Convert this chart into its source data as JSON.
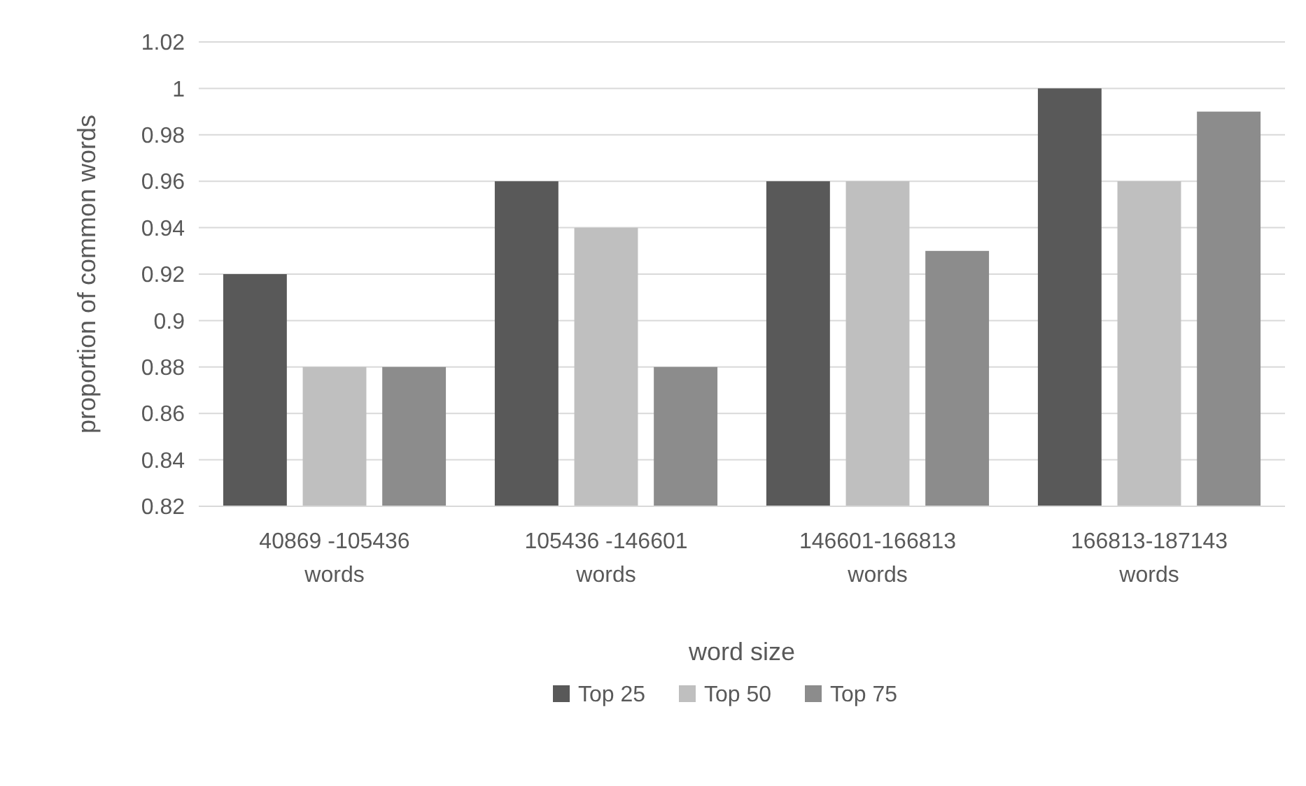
{
  "chart_data": {
    "type": "bar",
    "xlabel": "word size",
    "ylabel": "proportion of common words",
    "categories": [
      "40869 -105436 words",
      "105436 -146601 words",
      "146601-166813 words",
      "166813-187143 words"
    ],
    "series": [
      {
        "name": "Top 25",
        "color": "#595959",
        "values": [
          0.92,
          0.96,
          0.96,
          1
        ]
      },
      {
        "name": "Top 50",
        "color": "#bfbfbf",
        "values": [
          0.88,
          0.94,
          0.96,
          0.96
        ]
      },
      {
        "name": "Top 75",
        "color": "#8c8c8c",
        "values": [
          0.88,
          0.88,
          0.93,
          0.99
        ]
      }
    ],
    "ylim": [
      0.82,
      1.02
    ],
    "yticks": [
      0.82,
      0.84,
      0.86,
      0.88,
      0.9,
      0.92,
      0.94,
      0.96,
      0.98,
      1,
      1.02
    ],
    "grid": "y",
    "legend": "bottom"
  }
}
